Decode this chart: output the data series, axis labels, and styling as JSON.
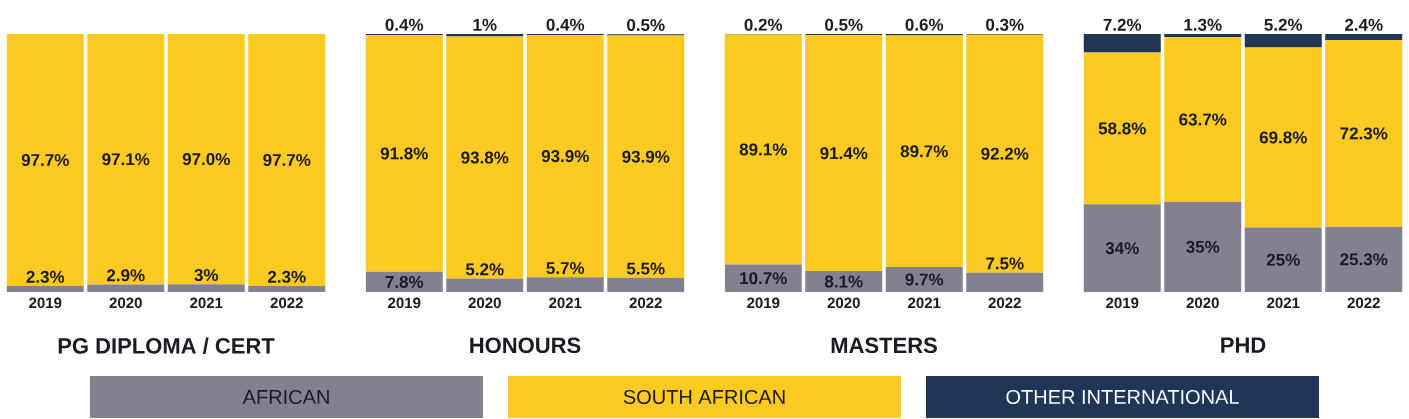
{
  "chart_data": [
    {
      "type": "bar",
      "stacked": true,
      "tick_labels": "x",
      "xlabel": "PG DIPLOMA / CERT",
      "categories": [
        "2019",
        "2020",
        "2021",
        "2022"
      ],
      "series": [
        {
          "color": "#858090",
          "values": [
            2.3,
            2.9,
            3,
            2.3
          ],
          "value_labels": [
            "2.3%",
            "2.9%",
            "3%",
            "2.3%"
          ]
        },
        {
          "color": "#fdca21",
          "values": [
            97.7,
            97.1,
            97.0,
            97.7
          ],
          "value_labels": [
            "97.7%",
            "97.1%",
            "97.0%",
            "97.7%"
          ]
        }
      ]
    },
    {
      "type": "bar",
      "stacked": true,
      "tick_labels": "x",
      "xlabel": "HONOURS",
      "categories": [
        "2019",
        "2020",
        "2021",
        "2022"
      ],
      "series": [
        {
          "color": "#858090",
          "values": [
            7.8,
            5.2,
            5.7,
            5.5
          ],
          "value_labels": [
            "7.8%",
            "5.2%",
            "5.7%",
            "5.5%"
          ]
        },
        {
          "color": "#fdca21",
          "values": [
            91.8,
            93.8,
            93.9,
            93.9
          ],
          "value_labels": [
            "91.8%",
            "93.8%",
            "93.9%",
            "93.9%"
          ]
        },
        {
          "color": "#1f3657",
          "values": [
            0.4,
            1,
            0.4,
            0.5
          ],
          "value_labels": [
            "0.4%",
            "1%",
            "0.4%",
            "0.5%"
          ]
        }
      ]
    },
    {
      "type": "bar",
      "stacked": true,
      "tick_labels": "x",
      "xlabel": "MASTERS",
      "categories": [
        "2019",
        "2020",
        "2021",
        "2022"
      ],
      "series": [
        {
          "color": "#858090",
          "values": [
            10.7,
            8.1,
            9.7,
            7.5
          ],
          "value_labels": [
            "10.7%",
            "8.1%",
            "9.7%",
            "7.5%"
          ]
        },
        {
          "color": "#fdca21",
          "values": [
            89.1,
            91.4,
            89.7,
            92.2
          ],
          "value_labels": [
            "89.1%",
            "91.4%",
            "89.7%",
            "92.2%"
          ]
        },
        {
          "color": "#1f3657",
          "values": [
            0.2,
            0.5,
            0.6,
            0.3
          ],
          "value_labels": [
            "0.2%",
            "0.5%",
            "0.6%",
            "0.3%"
          ]
        }
      ]
    },
    {
      "type": "bar",
      "stacked": true,
      "tick_labels": "x",
      "xlabel": "PHD",
      "legend": "bottom",
      "categories": [
        "2019",
        "2020",
        "2021",
        "2022"
      ],
      "series": [
        {
          "name": "AFRICAN",
          "color": "#858090",
          "values": [
            34,
            35,
            25,
            25.3
          ],
          "value_labels": [
            "34%",
            "35%",
            "25%",
            "25.3%"
          ]
        },
        {
          "name": "SOUTH AFRICAN",
          "color": "#fdca21",
          "values": [
            58.8,
            63.7,
            69.8,
            72.3
          ],
          "value_labels": [
            "58.8%",
            "63.7%",
            "69.8%",
            "72.3%"
          ]
        },
        {
          "name": "OTHER INTERNATIONAL",
          "color": "#1f3657",
          "values": [
            7.2,
            1.3,
            5.2,
            2.4
          ],
          "value_labels": [
            "7.2%",
            "1.3%",
            "5.2%",
            "2.4%"
          ]
        }
      ]
    }
  ]
}
